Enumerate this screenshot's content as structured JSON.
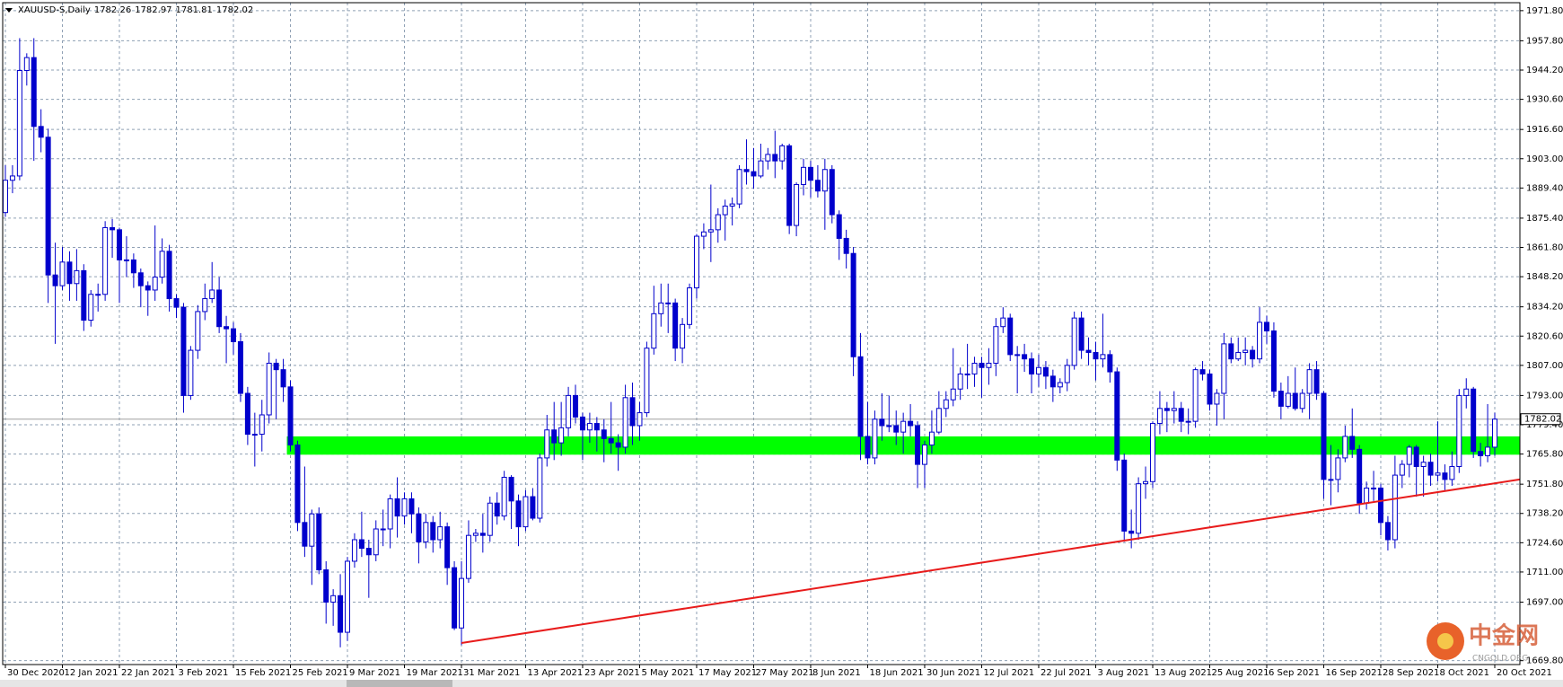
{
  "chart_data": {
    "type": "candlestick",
    "symbol": "XAUUSD-S,Daily",
    "header_ohlc": [
      1782.26,
      1782.97,
      1781.81,
      1782.02
    ],
    "categories": [
      "30 Dec 2020",
      null,
      null,
      null,
      null,
      null,
      null,
      null,
      "12 Jan 2021",
      null,
      null,
      null,
      null,
      null,
      null,
      null,
      "22 Jan 2021",
      null,
      null,
      null,
      null,
      null,
      null,
      null,
      "3 Feb 2021",
      null,
      null,
      null,
      null,
      null,
      null,
      null,
      "15 Feb 2021",
      null,
      null,
      null,
      null,
      null,
      null,
      null,
      "25 Feb 2021",
      null,
      null,
      null,
      null,
      null,
      null,
      null,
      "9 Mar 2021",
      null,
      null,
      null,
      null,
      null,
      null,
      null,
      "19 Mar 2021",
      null,
      null,
      null,
      null,
      null,
      null,
      null,
      "31 Mar 2021",
      null,
      null,
      null,
      null,
      null,
      null,
      null,
      null,
      "13 Apr 2021",
      null,
      null,
      null,
      null,
      null,
      null,
      null,
      "23 Apr 2021",
      null,
      null,
      null,
      null,
      null,
      null,
      null,
      "5 May 2021",
      null,
      null,
      null,
      null,
      null,
      null,
      null,
      "17 May 2021",
      null,
      null,
      null,
      null,
      null,
      null,
      null,
      "27 May 2021",
      null,
      null,
      null,
      null,
      null,
      null,
      null,
      "8 Jun 2021",
      null,
      null,
      null,
      null,
      null,
      null,
      null,
      "18 Jun 2021",
      null,
      null,
      null,
      null,
      null,
      null,
      null,
      "30 Jun 2021",
      null,
      null,
      null,
      null,
      null,
      null,
      null,
      "12 Jul 2021",
      null,
      null,
      null,
      null,
      null,
      null,
      null,
      "22 Jul 2021",
      null,
      null,
      null,
      null,
      null,
      null,
      null,
      "3 Aug 2021",
      null,
      null,
      null,
      null,
      null,
      null,
      null,
      "13 Aug 2021",
      null,
      null,
      null,
      null,
      null,
      null,
      null,
      "25 Aug 2021",
      null,
      null,
      null,
      null,
      null,
      null,
      null,
      "6 Sep 2021",
      null,
      null,
      null,
      null,
      null,
      null,
      null,
      "16 Sep 2021",
      null,
      null,
      null,
      null,
      null,
      null,
      null,
      "28 Sep 2021",
      null,
      null,
      null,
      null,
      null,
      null,
      null,
      "8 Oct 2021",
      null,
      null,
      null,
      null,
      null,
      null,
      null,
      "20 Oct 2021"
    ],
    "open": [
      1878,
      1893,
      1895,
      1944,
      1950,
      1918,
      1913,
      1849,
      1844,
      1855,
      1845,
      1851,
      1828,
      1840,
      1840,
      1871,
      1870,
      1856,
      1856,
      1850,
      1844,
      1842,
      1848,
      1860,
      1838,
      1834,
      1793,
      1814,
      1832,
      1838,
      1842,
      1825,
      1824,
      1818,
      1794,
      1775,
      1775,
      1784,
      1808,
      1805,
      1797,
      1770,
      1734,
      1723,
      1738,
      1712,
      1697,
      1700,
      1683,
      1716,
      1726,
      1722,
      1719,
      1731,
      1731,
      1745,
      1737,
      1745,
      1738,
      1725,
      1734,
      1726,
      1732,
      1713,
      1685,
      1708,
      1728,
      1729,
      1728,
      1743,
      1737,
      1755,
      1744,
      1732,
      1746,
      1736,
      1764,
      1777,
      1771,
      1778,
      1793,
      1783,
      1777,
      1780,
      1777,
      1773,
      1771,
      1769,
      1792,
      1779,
      1785,
      1815,
      1831,
      1836,
      1836,
      1815,
      1826,
      1843,
      1867,
      1869,
      1870,
      1877,
      1881,
      1882,
      1898,
      1897,
      1895,
      1902,
      1905,
      1902,
      1909,
      1872,
      1891,
      1899,
      1893,
      1888,
      1898,
      1877,
      1866,
      1859,
      1811,
      1774,
      1764,
      1782,
      1779,
      1779,
      1776,
      1781,
      1779,
      1761,
      1770,
      1776,
      1787,
      1791,
      1796,
      1803,
      1803,
      1808,
      1806,
      1808,
      1825,
      1829,
      1812,
      1812,
      1810,
      1803,
      1806,
      1802,
      1797,
      1799,
      1807,
      1829,
      1814,
      1813,
      1810,
      1812,
      1804,
      1763,
      1730,
      1729,
      1752,
      1753,
      1780,
      1787,
      1786,
      1787,
      1781,
      1781,
      1805,
      1803,
      1789,
      1794,
      1817,
      1810,
      1813,
      1814,
      1810,
      1827,
      1823,
      1795,
      1788,
      1794,
      1787,
      1794,
      1805,
      1794,
      1754,
      1754,
      1764,
      1774,
      1768,
      1743,
      1750,
      1750,
      1734,
      1726,
      1756,
      1761,
      1769,
      1760,
      1762,
      1756,
      1757,
      1754,
      1760,
      1793,
      1796,
      1767,
      1765,
      1769
    ],
    "high": [
      1900,
      1900,
      1959,
      1952,
      1959,
      1926,
      1917,
      1864,
      1862,
      1860,
      1861,
      1854,
      1842,
      1845,
      1874,
      1875,
      1871,
      1867,
      1859,
      1852,
      1846,
      1872,
      1866,
      1863,
      1840,
      1836,
      1816,
      1835,
      1845,
      1855,
      1848,
      1830,
      1827,
      1822,
      1797,
      1785,
      1791,
      1813,
      1810,
      1810,
      1800,
      1772,
      1760,
      1740,
      1741,
      1716,
      1703,
      1710,
      1718,
      1729,
      1739,
      1726,
      1735,
      1740,
      1747,
      1755,
      1748,
      1748,
      1741,
      1738,
      1737,
      1739,
      1734,
      1716,
      1716,
      1735,
      1731,
      1738,
      1746,
      1748,
      1758,
      1756,
      1747,
      1749,
      1750,
      1766,
      1784,
      1790,
      1790,
      1797,
      1798,
      1785,
      1785,
      1783,
      1782,
      1790,
      1775,
      1798,
      1799,
      1790,
      1818,
      1844,
      1845,
      1845,
      1838,
      1829,
      1845,
      1868,
      1873,
      1891,
      1880,
      1884,
      1885,
      1900,
      1912,
      1908,
      1910,
      1908,
      1916,
      1910,
      1910,
      1892,
      1903,
      1902,
      1900,
      1903,
      1900,
      1879,
      1870,
      1862,
      1822,
      1790,
      1786,
      1794,
      1793,
      1786,
      1785,
      1789,
      1781,
      1772,
      1786,
      1795,
      1795,
      1815,
      1806,
      1817,
      1811,
      1811,
      1815,
      1829,
      1834,
      1831,
      1816,
      1817,
      1813,
      1812,
      1809,
      1805,
      1801,
      1810,
      1832,
      1832,
      1820,
      1818,
      1831,
      1814,
      1806,
      1766,
      1740,
      1755,
      1760,
      1781,
      1795,
      1790,
      1795,
      1790,
      1787,
      1806,
      1809,
      1805,
      1796,
      1822,
      1820,
      1820,
      1820,
      1816,
      1834,
      1830,
      1827,
      1799,
      1802,
      1806,
      1796,
      1808,
      1809,
      1795,
      1770,
      1768,
      1779,
      1787,
      1770,
      1753,
      1758,
      1752,
      1737,
      1765,
      1763,
      1770,
      1770,
      1765,
      1766,
      1781,
      1761,
      1767,
      1796,
      1801,
      1797,
      1771,
      1789,
      1785
    ],
    "low": [
      1876,
      1887,
      1893,
      1937,
      1902,
      1906,
      1836,
      1817,
      1842,
      1837,
      1837,
      1823,
      1825,
      1832,
      1837,
      1857,
      1836,
      1848,
      1843,
      1834,
      1830,
      1837,
      1845,
      1832,
      1829,
      1785,
      1791,
      1810,
      1828,
      1836,
      1822,
      1808,
      1812,
      1790,
      1770,
      1760,
      1767,
      1780,
      1782,
      1790,
      1767,
      1730,
      1718,
      1705,
      1710,
      1687,
      1686,
      1676,
      1679,
      1713,
      1718,
      1699,
      1716,
      1723,
      1722,
      1727,
      1733,
      1729,
      1715,
      1722,
      1720,
      1722,
      1705,
      1684,
      1677,
      1706,
      1725,
      1720,
      1725,
      1733,
      1735,
      1731,
      1723,
      1730,
      1735,
      1734,
      1760,
      1763,
      1765,
      1774,
      1780,
      1763,
      1771,
      1767,
      1762,
      1766,
      1758,
      1766,
      1770,
      1772,
      1783,
      1812,
      1825,
      1822,
      1809,
      1808,
      1824,
      1838,
      1861,
      1855,
      1864,
      1865,
      1872,
      1880,
      1891,
      1889,
      1894,
      1898,
      1894,
      1898,
      1868,
      1867,
      1886,
      1885,
      1885,
      1870,
      1873,
      1856,
      1852,
      1802,
      1763,
      1761,
      1761,
      1772,
      1776,
      1770,
      1766,
      1774,
      1750,
      1750,
      1766,
      1775,
      1783,
      1788,
      1791,
      1796,
      1797,
      1792,
      1798,
      1802,
      1822,
      1809,
      1794,
      1804,
      1794,
      1797,
      1796,
      1790,
      1794,
      1795,
      1805,
      1810,
      1807,
      1800,
      1806,
      1799,
      1758,
      1725,
      1722,
      1726,
      1745,
      1750,
      1775,
      1776,
      1780,
      1776,
      1775,
      1778,
      1800,
      1786,
      1779,
      1782,
      1808,
      1809,
      1807,
      1806,
      1808,
      1817,
      1792,
      1782,
      1787,
      1786,
      1785,
      1782,
      1791,
      1745,
      1742,
      1748,
      1762,
      1764,
      1738,
      1740,
      1744,
      1728,
      1721,
      1722,
      1750,
      1755,
      1746,
      1746,
      1751,
      1753,
      1749,
      1751,
      1757,
      1787,
      1764,
      1760,
      1762,
      1765
    ],
    "close": [
      1893,
      1895,
      1944,
      1950,
      1918,
      1913,
      1849,
      1844,
      1855,
      1845,
      1851,
      1828,
      1840,
      1840,
      1871,
      1870,
      1856,
      1856,
      1850,
      1844,
      1842,
      1848,
      1860,
      1838,
      1834,
      1793,
      1814,
      1832,
      1838,
      1842,
      1825,
      1824,
      1818,
      1794,
      1775,
      1775,
      1784,
      1808,
      1805,
      1797,
      1770,
      1734,
      1723,
      1738,
      1712,
      1697,
      1700,
      1683,
      1716,
      1726,
      1722,
      1719,
      1731,
      1731,
      1745,
      1737,
      1745,
      1738,
      1725,
      1734,
      1726,
      1732,
      1713,
      1685,
      1708,
      1728,
      1729,
      1728,
      1743,
      1737,
      1755,
      1744,
      1732,
      1746,
      1736,
      1764,
      1777,
      1771,
      1778,
      1793,
      1783,
      1777,
      1780,
      1777,
      1773,
      1771,
      1769,
      1792,
      1779,
      1785,
      1815,
      1831,
      1836,
      1836,
      1815,
      1826,
      1843,
      1867,
      1869,
      1870,
      1877,
      1881,
      1882,
      1898,
      1897,
      1895,
      1902,
      1905,
      1902,
      1909,
      1872,
      1891,
      1899,
      1893,
      1888,
      1898,
      1877,
      1866,
      1859,
      1811,
      1774,
      1764,
      1782,
      1779,
      1779,
      1776,
      1781,
      1779,
      1761,
      1770,
      1776,
      1787,
      1791,
      1796,
      1803,
      1803,
      1808,
      1806,
      1808,
      1825,
      1829,
      1812,
      1812,
      1810,
      1803,
      1806,
      1802,
      1797,
      1799,
      1807,
      1829,
      1814,
      1813,
      1810,
      1812,
      1804,
      1763,
      1730,
      1729,
      1752,
      1753,
      1780,
      1787,
      1786,
      1787,
      1781,
      1781,
      1805,
      1803,
      1789,
      1794,
      1817,
      1810,
      1813,
      1814,
      1810,
      1827,
      1823,
      1795,
      1788,
      1794,
      1787,
      1794,
      1805,
      1794,
      1754,
      1754,
      1764,
      1774,
      1768,
      1743,
      1750,
      1750,
      1734,
      1726,
      1756,
      1761,
      1769,
      1760,
      1762,
      1756,
      1757,
      1754,
      1760,
      1793,
      1796,
      1767,
      1765,
      1769,
      1782.02
    ],
    "up_color": "#ffffff",
    "down_color": "#0000cc",
    "outline_color": "#0000cc",
    "ylim": [
      1668,
      1975.5
    ],
    "yticks": [
      {
        "value": 1971.8,
        "label": "1971.80"
      },
      {
        "value": 1957.8,
        "label": "1957.80"
      },
      {
        "value": 1944.2,
        "label": "1944.20"
      },
      {
        "value": 1930.6,
        "label": "1930.60"
      },
      {
        "value": 1916.6,
        "label": "1916.60"
      },
      {
        "value": 1903,
        "label": "1903.00"
      },
      {
        "value": 1889.4,
        "label": "1889.40"
      },
      {
        "value": 1875.4,
        "label": "1875.40"
      },
      {
        "value": 1861.8,
        "label": "1861.80"
      },
      {
        "value": 1848.2,
        "label": "1848.20"
      },
      {
        "value": 1834.2,
        "label": "1834.20"
      },
      {
        "value": 1820.6,
        "label": "1820.60"
      },
      {
        "value": 1807,
        "label": "1807.00"
      },
      {
        "value": 1793,
        "label": "1793.00"
      },
      {
        "value": 1779.4,
        "label": "1779.40"
      },
      {
        "value": 1765.8,
        "label": "1765.80"
      },
      {
        "value": 1751.8,
        "label": "1751.80"
      },
      {
        "value": 1738.2,
        "label": "1738.20"
      },
      {
        "value": 1724.6,
        "label": "1724.60"
      },
      {
        "value": 1711,
        "label": "1711.00"
      },
      {
        "value": 1697,
        "label": "1697.00"
      },
      {
        "value": 1669.8,
        "label": "1669.80"
      }
    ],
    "grid": true,
    "current_price": 1782.02,
    "zone": {
      "x": [
        39.5,
        212.5
      ],
      "range": [
        1765.5,
        1774
      ],
      "color": "#00ff00"
    },
    "trendline": {
      "x": [
        64,
        212.5
      ],
      "values": [
        1678,
        1754
      ],
      "color": "#e81c1c"
    }
  },
  "watermark": {
    "title": "中金网",
    "subtitle": "CNGOLD.ORG"
  }
}
